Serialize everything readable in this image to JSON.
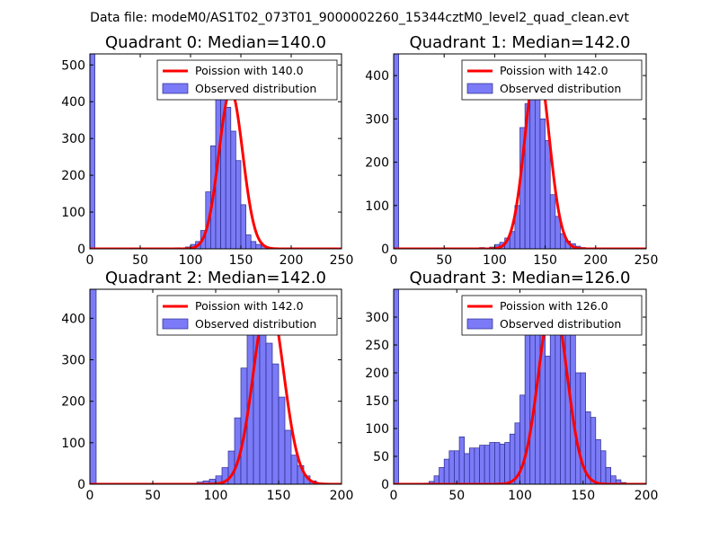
{
  "suptitle": "Data file: modeM0/AS1T02_073T01_9000002260_15344cztM0_level2_quad_clean.evt",
  "colors": {
    "bar_fill": "#7b7bf7",
    "bar_edge": "#2b2b8f",
    "curve": "#ff0000",
    "curve_faded": "#f28080",
    "axis": "#000000"
  },
  "chart_data": [
    {
      "type": "bar",
      "title": "Quadrant 0: Median=140.0",
      "xlim": [
        0,
        250
      ],
      "ylim": [
        0,
        530
      ],
      "xticks": [
        "0",
        "50",
        "100",
        "150",
        "200",
        "250"
      ],
      "yticks": [
        "0",
        "100",
        "200",
        "300",
        "400",
        "500"
      ],
      "xtick_values": [
        0,
        50,
        100,
        150,
        200,
        250
      ],
      "ytick_values": [
        0,
        100,
        200,
        300,
        400,
        500
      ],
      "poisson_mean": 140.0,
      "poisson_peak": 430,
      "legend": {
        "line_label": "Poission with 140.0",
        "bar_label": "Observed distribution",
        "placement": "upper-right"
      },
      "bin_edges": [
        0,
        5,
        10,
        15,
        20,
        25,
        30,
        35,
        40,
        45,
        50,
        55,
        60,
        65,
        70,
        75,
        80,
        85,
        90,
        95,
        100,
        105,
        110,
        115,
        120,
        125,
        130,
        135,
        140,
        145,
        150,
        155,
        160,
        165,
        170,
        175,
        180,
        185,
        190,
        195,
        200,
        205,
        210,
        215,
        220,
        225,
        230,
        235,
        240,
        245,
        250
      ],
      "counts": [
        530,
        0,
        0,
        0,
        0,
        0,
        0,
        0,
        0,
        0,
        0,
        0,
        0,
        0,
        0,
        0,
        0,
        3,
        0,
        5,
        12,
        20,
        50,
        155,
        280,
        420,
        460,
        385,
        320,
        240,
        120,
        38,
        20,
        12,
        8,
        4,
        2,
        0,
        0,
        0,
        0,
        0,
        0,
        0,
        0,
        0,
        0,
        0,
        0,
        0
      ]
    },
    {
      "type": "bar",
      "title": "Quadrant 1: Median=142.0",
      "xlim": [
        0,
        250
      ],
      "ylim": [
        0,
        450
      ],
      "xticks": [
        "0",
        "50",
        "100",
        "150",
        "200",
        "250"
      ],
      "yticks": [
        "0",
        "100",
        "200",
        "300",
        "400"
      ],
      "xtick_values": [
        0,
        50,
        100,
        150,
        200,
        250
      ],
      "ytick_values": [
        0,
        100,
        200,
        300,
        400
      ],
      "poisson_mean": 142.0,
      "poisson_peak": 430,
      "legend": {
        "line_label": "Poission with 142.0",
        "bar_label": "Observed distribution",
        "placement": "upper-right"
      },
      "bin_edges": [
        0,
        5,
        10,
        15,
        20,
        25,
        30,
        35,
        40,
        45,
        50,
        55,
        60,
        65,
        70,
        75,
        80,
        85,
        90,
        95,
        100,
        105,
        110,
        115,
        120,
        125,
        130,
        135,
        140,
        145,
        150,
        155,
        160,
        165,
        170,
        175,
        180,
        185,
        190,
        195,
        200,
        205,
        210,
        215,
        220,
        225,
        230,
        235,
        240,
        245,
        250
      ],
      "counts": [
        450,
        0,
        0,
        0,
        0,
        0,
        0,
        0,
        0,
        0,
        0,
        0,
        0,
        0,
        0,
        0,
        0,
        3,
        0,
        4,
        10,
        15,
        25,
        40,
        100,
        280,
        335,
        420,
        370,
        300,
        250,
        125,
        75,
        35,
        18,
        12,
        6,
        3,
        0,
        0,
        0,
        0,
        0,
        0,
        0,
        0,
        0,
        0,
        0,
        0
      ]
    },
    {
      "type": "bar",
      "title": "Quadrant 2: Median=142.0",
      "xlim": [
        0,
        200
      ],
      "ylim": [
        0,
        470
      ],
      "xticks": [
        "0",
        "50",
        "100",
        "150",
        "200"
      ],
      "yticks": [
        "0",
        "100",
        "200",
        "300",
        "400"
      ],
      "xtick_values": [
        0,
        50,
        100,
        150,
        200
      ],
      "ytick_values": [
        0,
        100,
        200,
        300,
        400
      ],
      "poisson_mean": 142.0,
      "poisson_peak": 450,
      "legend": {
        "line_label": "Poission with 142.0",
        "bar_label": "Observed distribution",
        "placement": "upper-right"
      },
      "bin_edges": [
        0,
        5,
        10,
        15,
        20,
        25,
        30,
        35,
        40,
        45,
        50,
        55,
        60,
        65,
        70,
        75,
        80,
        85,
        90,
        95,
        100,
        105,
        110,
        115,
        120,
        125,
        130,
        135,
        140,
        145,
        150,
        155,
        160,
        165,
        170,
        175,
        180,
        185,
        190,
        195,
        200
      ],
      "counts": [
        470,
        0,
        0,
        0,
        0,
        0,
        0,
        0,
        0,
        0,
        0,
        0,
        0,
        0,
        0,
        0,
        0,
        5,
        8,
        12,
        20,
        40,
        80,
        160,
        280,
        400,
        440,
        415,
        340,
        290,
        210,
        130,
        70,
        45,
        20,
        8,
        3,
        0,
        0,
        0
      ]
    },
    {
      "type": "bar",
      "title": "Quadrant 3: Median=126.0",
      "xlim": [
        0,
        200
      ],
      "ylim": [
        0,
        350
      ],
      "xticks": [
        "0",
        "50",
        "100",
        "150",
        "200"
      ],
      "yticks": [
        "0",
        "50",
        "100",
        "150",
        "200",
        "250",
        "300"
      ],
      "xtick_values": [
        0,
        50,
        100,
        150,
        200
      ],
      "ytick_values": [
        0,
        50,
        100,
        150,
        200,
        250,
        300
      ],
      "poisson_mean": 126.0,
      "poisson_peak": 330,
      "legend": {
        "line_label": "Poission with 126.0",
        "bar_label": "Observed distribution",
        "placement": "upper-right"
      },
      "bin_edges": [
        0,
        4,
        8,
        12,
        16,
        20,
        24,
        28,
        32,
        36,
        40,
        44,
        48,
        52,
        56,
        60,
        64,
        68,
        72,
        76,
        80,
        84,
        88,
        92,
        96,
        100,
        104,
        108,
        112,
        116,
        120,
        124,
        128,
        132,
        136,
        140,
        144,
        148,
        152,
        156,
        160,
        164,
        168,
        172,
        176,
        180,
        184,
        188,
        192,
        196,
        200
      ],
      "counts": [
        350,
        0,
        0,
        0,
        0,
        0,
        2,
        5,
        15,
        30,
        45,
        60,
        60,
        85,
        55,
        65,
        65,
        70,
        70,
        75,
        75,
        72,
        75,
        90,
        110,
        160,
        280,
        310,
        270,
        280,
        230,
        310,
        300,
        280,
        280,
        290,
        200,
        200,
        130,
        120,
        80,
        60,
        30,
        15,
        8,
        3,
        0,
        0,
        0,
        0
      ]
    }
  ]
}
